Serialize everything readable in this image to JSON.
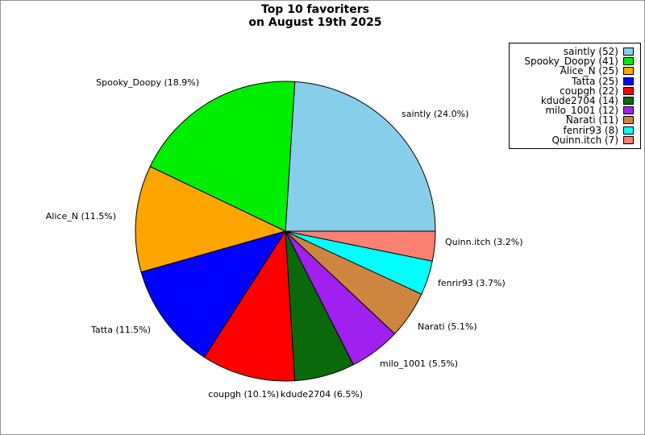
{
  "title": {
    "line1": "Top 10 favoriters",
    "line2": "on August 19th 2025"
  },
  "chart_data": {
    "type": "pie",
    "title": "Top 10 favoriters on August 19th 2025",
    "start_angle_deg": 0,
    "direction": "counterclockwise",
    "legend_position": "upper right",
    "slice_edge_color": "#000000",
    "series": [
      {
        "name": "saintly",
        "count": 52,
        "percent": 24.0,
        "color": "#87CEEB",
        "slice_label": "saintly (24.0%)",
        "legend_label": "saintly (52)"
      },
      {
        "name": "Spooky_Doopy",
        "count": 41,
        "percent": 18.9,
        "color": "#00EE00",
        "slice_label": "Spooky_Doopy (18.9%)",
        "legend_label": "Spooky_Doopy (41)"
      },
      {
        "name": "Alice_N",
        "count": 25,
        "percent": 11.5,
        "color": "#FFA500",
        "slice_label": "Alice_N (11.5%)",
        "legend_label": "Alice_N (25)"
      },
      {
        "name": "Tatta",
        "count": 25,
        "percent": 11.5,
        "color": "#0000FF",
        "slice_label": "Tatta (11.5%)",
        "legend_label": "Tatta (25)"
      },
      {
        "name": "coupgh",
        "count": 22,
        "percent": 10.1,
        "color": "#FF0000",
        "slice_label": "coupgh (10.1%)",
        "legend_label": "coupgh (22)"
      },
      {
        "name": "kdude2704",
        "count": 14,
        "percent": 6.5,
        "color": "#0A690A",
        "slice_label": "kdude2704 (6.5%)",
        "legend_label": "kdude2704 (14)"
      },
      {
        "name": "milo_1001",
        "count": 12,
        "percent": 5.5,
        "color": "#A020F0",
        "slice_label": "milo_1001 (5.5%)",
        "legend_label": "milo_1001 (12)"
      },
      {
        "name": "Narati",
        "count": 11,
        "percent": 5.1,
        "color": "#CD853F",
        "slice_label": "Narati (5.1%)",
        "legend_label": "Narati (11)"
      },
      {
        "name": "fenrir93",
        "count": 8,
        "percent": 3.7,
        "color": "#00FFFF",
        "slice_label": "fenrir93 (3.7%)",
        "legend_label": "fenrir93 (8)"
      },
      {
        "name": "Quinn.itch",
        "count": 7,
        "percent": 3.2,
        "color": "#FA8072",
        "slice_label": "Quinn.itch (3.2%)",
        "legend_label": "Quinn.itch (7)"
      }
    ]
  }
}
